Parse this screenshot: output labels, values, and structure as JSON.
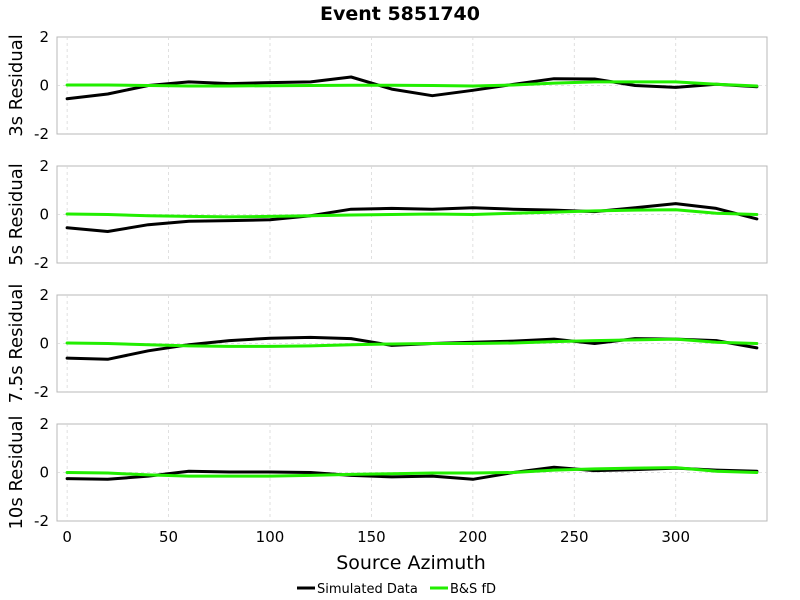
{
  "chart_data": [
    {
      "type": "line",
      "title": "Event 5851740",
      "ylabel": "3s Residual",
      "xlabel": "Source Azimuth",
      "xlim": [
        -5,
        345
      ],
      "ylim": [
        -2,
        2
      ],
      "xticks": [
        0,
        50,
        100,
        150,
        200,
        250,
        300
      ],
      "yticks": [
        -2,
        0,
        2
      ],
      "x": [
        0,
        20,
        40,
        60,
        80,
        100,
        120,
        140,
        160,
        180,
        200,
        220,
        240,
        260,
        280,
        300,
        320,
        340
      ],
      "series": [
        {
          "name": "Simulated Data",
          "color": "#000000",
          "values": [
            -0.55,
            -0.35,
            0.0,
            0.15,
            0.08,
            0.12,
            0.15,
            0.35,
            -0.15,
            -0.42,
            -0.2,
            0.05,
            0.28,
            0.27,
            0.0,
            -0.08,
            0.05,
            -0.05
          ]
        },
        {
          "name": "B&S fD",
          "color": "#22ee00",
          "values": [
            0.02,
            0.02,
            0.0,
            -0.02,
            -0.02,
            -0.01,
            0.0,
            0.01,
            0.01,
            0.0,
            -0.02,
            0.02,
            0.1,
            0.15,
            0.15,
            0.15,
            0.05,
            -0.02
          ]
        }
      ]
    },
    {
      "type": "line",
      "ylabel": "5s Residual",
      "xlabel": "Source Azimuth",
      "xlim": [
        -5,
        345
      ],
      "ylim": [
        -2,
        2
      ],
      "xticks": [
        0,
        50,
        100,
        150,
        200,
        250,
        300
      ],
      "yticks": [
        -2,
        0,
        2
      ],
      "x": [
        0,
        20,
        40,
        60,
        80,
        100,
        120,
        140,
        160,
        180,
        200,
        220,
        240,
        260,
        280,
        300,
        320,
        340
      ],
      "series": [
        {
          "name": "Simulated Data",
          "color": "#000000",
          "values": [
            -0.55,
            -0.7,
            -0.42,
            -0.28,
            -0.25,
            -0.22,
            -0.05,
            0.22,
            0.25,
            0.22,
            0.28,
            0.22,
            0.18,
            0.12,
            0.28,
            0.45,
            0.25,
            -0.18
          ]
        },
        {
          "name": "B&S fD",
          "color": "#22ee00",
          "values": [
            0.02,
            0.0,
            -0.05,
            -0.08,
            -0.1,
            -0.08,
            -0.05,
            -0.02,
            0.0,
            0.02,
            0.0,
            0.05,
            0.1,
            0.15,
            0.18,
            0.2,
            0.05,
            0.0
          ]
        }
      ]
    },
    {
      "type": "line",
      "ylabel": "7.5s Residual",
      "xlabel": "Source Azimuth",
      "xlim": [
        -5,
        345
      ],
      "ylim": [
        -2,
        2
      ],
      "xticks": [
        0,
        50,
        100,
        150,
        200,
        250,
        300
      ],
      "yticks": [
        -2,
        0,
        2
      ],
      "x": [
        0,
        20,
        40,
        60,
        80,
        100,
        120,
        140,
        160,
        180,
        200,
        220,
        240,
        260,
        280,
        300,
        320,
        340
      ],
      "series": [
        {
          "name": "Simulated Data",
          "color": "#000000",
          "values": [
            -0.6,
            -0.65,
            -0.3,
            -0.05,
            0.12,
            0.22,
            0.25,
            0.2,
            -0.08,
            0.0,
            0.05,
            0.1,
            0.18,
            0.0,
            0.2,
            0.18,
            0.12,
            -0.18
          ]
        },
        {
          "name": "B&S fD",
          "color": "#22ee00",
          "values": [
            0.02,
            0.0,
            -0.05,
            -0.1,
            -0.12,
            -0.12,
            -0.1,
            -0.05,
            -0.02,
            0.0,
            0.0,
            0.02,
            0.08,
            0.12,
            0.15,
            0.18,
            0.05,
            0.0
          ]
        }
      ]
    },
    {
      "type": "line",
      "ylabel": "10s Residual",
      "xlabel": "Source Azimuth",
      "xlim": [
        -5,
        345
      ],
      "ylim": [
        -2,
        2
      ],
      "xticks": [
        0,
        50,
        100,
        150,
        200,
        250,
        300
      ],
      "yticks": [
        -2,
        0,
        2
      ],
      "x": [
        0,
        20,
        40,
        60,
        80,
        100,
        120,
        140,
        160,
        180,
        200,
        220,
        240,
        260,
        280,
        300,
        320,
        340
      ],
      "series": [
        {
          "name": "Simulated Data",
          "color": "#000000",
          "values": [
            -0.25,
            -0.28,
            -0.15,
            0.05,
            0.02,
            0.02,
            0.0,
            -0.12,
            -0.18,
            -0.15,
            -0.28,
            0.0,
            0.22,
            0.08,
            0.12,
            0.18,
            0.1,
            0.05
          ]
        },
        {
          "name": "B&S fD",
          "color": "#22ee00",
          "values": [
            0.0,
            -0.02,
            -0.1,
            -0.15,
            -0.15,
            -0.15,
            -0.12,
            -0.08,
            -0.05,
            -0.02,
            -0.02,
            0.0,
            0.1,
            0.15,
            0.18,
            0.2,
            0.05,
            0.0
          ]
        }
      ]
    }
  ],
  "legend": {
    "position": "bottom-center",
    "items": [
      {
        "label": "Simulated Data",
        "color": "#000000"
      },
      {
        "label": "B&S fD",
        "color": "#22ee00"
      }
    ]
  }
}
